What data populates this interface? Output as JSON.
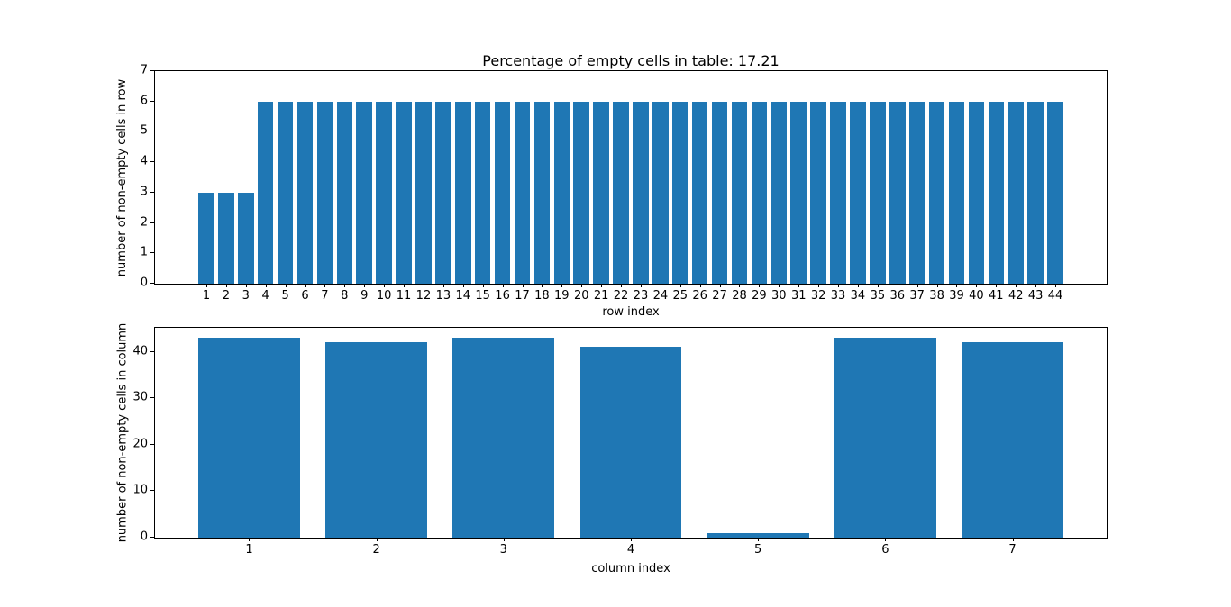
{
  "figure": {
    "background": "#ffffff",
    "bar_color": "#1f77b4",
    "axis_color": "#000000",
    "empty_percentage": "17.21"
  },
  "chart_data": [
    {
      "type": "bar",
      "title": "Percentage of empty cells in table: 17.21",
      "xlabel": "row index",
      "ylabel": "number of non-empty cells in row",
      "categories": [
        1,
        2,
        3,
        4,
        5,
        6,
        7,
        8,
        9,
        10,
        11,
        12,
        13,
        14,
        15,
        16,
        17,
        18,
        19,
        20,
        21,
        22,
        23,
        24,
        25,
        26,
        27,
        28,
        29,
        30,
        31,
        32,
        33,
        34,
        35,
        36,
        37,
        38,
        39,
        40,
        41,
        42,
        43,
        44
      ],
      "values": [
        3,
        3,
        3,
        6,
        6,
        6,
        6,
        6,
        6,
        6,
        6,
        6,
        6,
        6,
        6,
        6,
        6,
        6,
        6,
        6,
        6,
        6,
        6,
        6,
        6,
        6,
        6,
        6,
        6,
        6,
        6,
        6,
        6,
        6,
        6,
        6,
        6,
        6,
        6,
        6,
        6,
        6,
        6,
        6
      ],
      "xlim": [
        -1.6,
        46.6
      ],
      "ylim": [
        0,
        7
      ],
      "yticks": [
        0,
        1,
        2,
        3,
        4,
        5,
        6,
        7
      ],
      "bar_width": 0.8,
      "grid": false,
      "legend": "none"
    },
    {
      "type": "bar",
      "title": "",
      "xlabel": "column index",
      "ylabel": "number of non-empty cells in column",
      "categories": [
        1,
        2,
        3,
        4,
        5,
        6,
        7
      ],
      "values": [
        43,
        42,
        43,
        41,
        1,
        43,
        42
      ],
      "xlim": [
        0.26,
        7.74
      ],
      "ylim": [
        0,
        45.15
      ],
      "yticks": [
        0,
        10,
        20,
        30,
        40
      ],
      "bar_width": 0.8,
      "grid": false,
      "legend": "none"
    }
  ]
}
